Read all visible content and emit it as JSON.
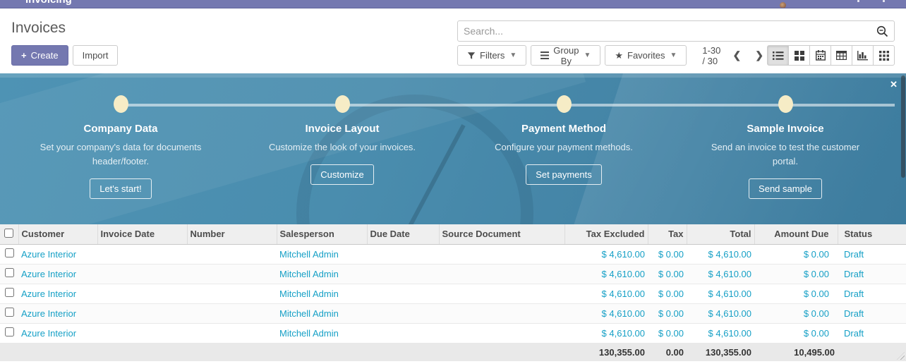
{
  "colors": {
    "accent_purple": "#7478b0",
    "link_teal": "#16a0c6",
    "banner_blue": "#4a8dae",
    "dot_cream": "#f6ecc6"
  },
  "topbar": {
    "app_name": "Invoicing"
  },
  "page": {
    "title": "Invoices",
    "create_label": "Create",
    "import_label": "Import"
  },
  "search": {
    "placeholder": "Search..."
  },
  "toolbar": {
    "filters_label": "Filters",
    "group_by_label": "Group By",
    "favorites_label": "Favorites",
    "pager": "1-30 / 30",
    "prev_label": "❮",
    "next_label": "❯"
  },
  "view_switcher": {
    "active": "list",
    "views": [
      "list",
      "kanban",
      "calendar",
      "pivot",
      "graph",
      "activity"
    ]
  },
  "onboarding": {
    "close_label": "✕",
    "steps": [
      {
        "title": "Company Data",
        "description": "Set your company's data for documents header/footer.",
        "button": "Let's start!"
      },
      {
        "title": "Invoice Layout",
        "description": "Customize the look of your invoices.",
        "button": "Customize"
      },
      {
        "title": "Payment Method",
        "description": "Configure your payment methods.",
        "button": "Set payments"
      },
      {
        "title": "Sample Invoice",
        "description": "Send an invoice to test the customer portal.",
        "button": "Send sample"
      }
    ]
  },
  "table": {
    "columns": [
      "Customer",
      "Invoice Date",
      "Number",
      "Salesperson",
      "Due Date",
      "Source Document",
      "Tax Excluded",
      "Tax",
      "Total",
      "Amount Due",
      "Status"
    ],
    "rows": [
      {
        "customer": "Azure Interior",
        "invoice_date": "",
        "number": "",
        "salesperson": "Mitchell Admin",
        "due_date": "",
        "source_document": "",
        "tax_excluded": "$ 4,610.00",
        "tax": "$ 0.00",
        "total": "$ 4,610.00",
        "amount_due": "$ 0.00",
        "status": "Draft"
      },
      {
        "customer": "Azure Interior",
        "invoice_date": "",
        "number": "",
        "salesperson": "Mitchell Admin",
        "due_date": "",
        "source_document": "",
        "tax_excluded": "$ 4,610.00",
        "tax": "$ 0.00",
        "total": "$ 4,610.00",
        "amount_due": "$ 0.00",
        "status": "Draft"
      },
      {
        "customer": "Azure Interior",
        "invoice_date": "",
        "number": "",
        "salesperson": "Mitchell Admin",
        "due_date": "",
        "source_document": "",
        "tax_excluded": "$ 4,610.00",
        "tax": "$ 0.00",
        "total": "$ 4,610.00",
        "amount_due": "$ 0.00",
        "status": "Draft"
      },
      {
        "customer": "Azure Interior",
        "invoice_date": "",
        "number": "",
        "salesperson": "Mitchell Admin",
        "due_date": "",
        "source_document": "",
        "tax_excluded": "$ 4,610.00",
        "tax": "$ 0.00",
        "total": "$ 4,610.00",
        "amount_due": "$ 0.00",
        "status": "Draft"
      },
      {
        "customer": "Azure Interior",
        "invoice_date": "",
        "number": "",
        "salesperson": "Mitchell Admin",
        "due_date": "",
        "source_document": "",
        "tax_excluded": "$ 4,610.00",
        "tax": "$ 0.00",
        "total": "$ 4,610.00",
        "amount_due": "$ 0.00",
        "status": "Draft"
      }
    ],
    "footer": {
      "tax_excluded": "130,355.00",
      "tax": "0.00",
      "total": "130,355.00",
      "amount_due": "10,495.00"
    }
  }
}
